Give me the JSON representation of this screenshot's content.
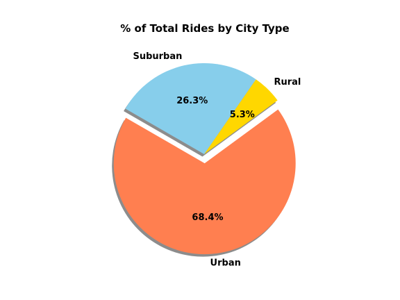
{
  "chart_data": {
    "type": "pie",
    "title": "% of Total Rides by City Type",
    "labels": [
      "Urban",
      "Rural",
      "Suburban"
    ],
    "values": [
      68.4,
      5.3,
      26.3
    ],
    "percent_labels": [
      "68.4%",
      "5.3%",
      "26.3%"
    ],
    "colors": [
      "#ff7f50",
      "#ffd700",
      "#87ceeb"
    ],
    "explode": [
      0.1,
      0,
      0
    ],
    "start_angle_deg": 150,
    "shadow": true,
    "legend": "none"
  }
}
